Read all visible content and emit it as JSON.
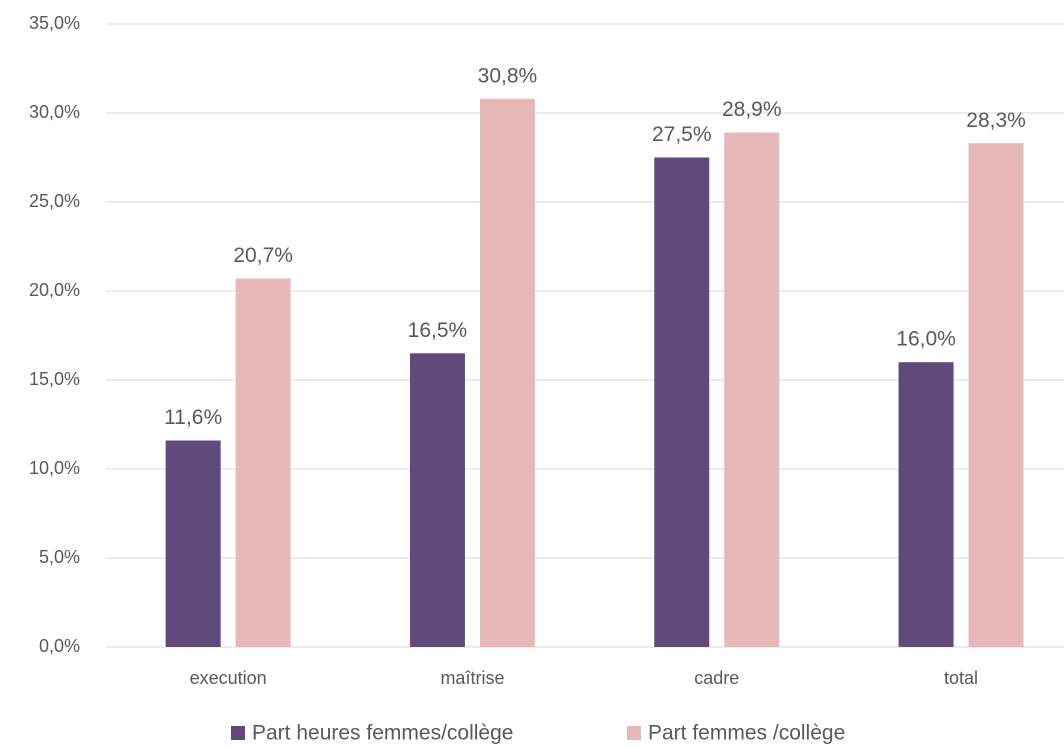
{
  "chart_data": {
    "type": "bar",
    "categories": [
      "execution",
      "maîtrise",
      "cadre",
      "total"
    ],
    "series": [
      {
        "name": "Part heures femmes/collège",
        "color": "#604a7b",
        "values": [
          11.6,
          16.5,
          27.5,
          16.0
        ],
        "value_labels": [
          "11,6%",
          "16,5%",
          "27,5%",
          "16,0%"
        ]
      },
      {
        "name": "Part femmes /collège",
        "color": "#e6b9b8",
        "values": [
          20.7,
          30.8,
          28.9,
          28.3
        ],
        "value_labels": [
          "20,7%",
          "30,8%",
          "28,9%",
          "28,3%"
        ]
      }
    ],
    "ylim": [
      0,
      35
    ],
    "yticks": [
      {
        "value": 0,
        "label": "0,0%"
      },
      {
        "value": 5,
        "label": "5,0%"
      },
      {
        "value": 10,
        "label": "10,0%"
      },
      {
        "value": 15,
        "label": "15,0%"
      },
      {
        "value": 20,
        "label": "20,0%"
      },
      {
        "value": 25,
        "label": "25,0%"
      },
      {
        "value": 30,
        "label": "30,0%"
      },
      {
        "value": 35,
        "label": "35,0%"
      }
    ],
    "grid": true,
    "legend": "bottom"
  }
}
